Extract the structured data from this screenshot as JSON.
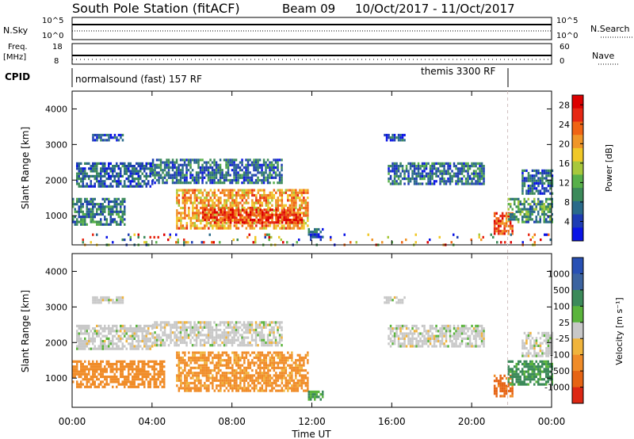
{
  "header": {
    "title": "South Pole Station (fitACF)",
    "beam": "Beam 09",
    "date_range": "10/Oct/2017 - 11/Oct/2017"
  },
  "summary_panels": {
    "nsky": {
      "label": "N.Sky",
      "right_label": "N.Search",
      "left_ticks": [
        "10^5",
        "10^0"
      ],
      "right_ticks": [
        "10^5",
        "10^0"
      ]
    },
    "freq": {
      "label_line1": "Freq.",
      "label_line2": "[MHz]",
      "right_label": "Nave",
      "left_ticks": [
        "18",
        "8"
      ],
      "right_ticks": [
        "60",
        "0"
      ]
    },
    "cpid": {
      "label": "CPID",
      "program1": "normalsound (fast) 157 RF",
      "program2": "themis 3300 RF"
    }
  },
  "chart_data": [
    {
      "type": "heatmap",
      "name": "power",
      "ylabel": "Slant Range [km]",
      "xlabel": "Time UT",
      "x_ticks": [
        "00:00",
        "04:00",
        "08:00",
        "12:00",
        "16:00",
        "20:00",
        "00:00"
      ],
      "xlim_hours": [
        0,
        24
      ],
      "ylim_km": [
        180,
        4500
      ],
      "y_ticks": [
        1000,
        2000,
        3000,
        4000
      ],
      "colorbar": {
        "label": "Power [dB]",
        "ticks": [
          4,
          8,
          12,
          16,
          20,
          24,
          28
        ],
        "range": [
          0,
          30
        ],
        "colors": [
          "#0a14e6",
          "#1e3cb4",
          "#2a6a8a",
          "#3c8a5a",
          "#58b04a",
          "#a8c83c",
          "#f0c828",
          "#f09628",
          "#f06414",
          "#e62814",
          "#dc0000"
        ]
      },
      "regions": [
        {
          "t0": 0.0,
          "t1": 2.6,
          "r0": 750,
          "r1": 1500,
          "level": 8
        },
        {
          "t0": 0.2,
          "t1": 4.0,
          "r0": 1800,
          "r1": 2500,
          "level": 6
        },
        {
          "t0": 1.0,
          "t1": 2.5,
          "r0": 3100,
          "r1": 3300,
          "level": 5
        },
        {
          "t0": 5.2,
          "t1": 11.8,
          "r0": 650,
          "r1": 1750,
          "level": 20
        },
        {
          "t0": 6.5,
          "t1": 11.5,
          "r0": 800,
          "r1": 1200,
          "level": 26
        },
        {
          "t0": 4.0,
          "t1": 10.5,
          "r0": 1900,
          "r1": 2600,
          "level": 7
        },
        {
          "t0": 11.8,
          "t1": 12.5,
          "r0": 400,
          "r1": 650,
          "level": 5
        },
        {
          "t0": 15.8,
          "t1": 20.6,
          "r0": 1900,
          "r1": 2500,
          "level": 7
        },
        {
          "t0": 15.6,
          "t1": 16.6,
          "r0": 3100,
          "r1": 3300,
          "level": 5
        },
        {
          "t0": 21.1,
          "t1": 22.0,
          "r0": 500,
          "r1": 1100,
          "level": 24
        },
        {
          "t0": 21.8,
          "t1": 24.0,
          "r0": 800,
          "r1": 1500,
          "level": 10
        },
        {
          "t0": 22.5,
          "t1": 24.0,
          "r0": 1600,
          "r1": 2300,
          "level": 6
        },
        {
          "t0": 0.0,
          "t1": 24.0,
          "r0": 180,
          "r1": 500,
          "level": 10
        }
      ]
    },
    {
      "type": "heatmap",
      "name": "velocity",
      "ylabel": "Slant Range [km]",
      "xlabel": "Time UT",
      "x_ticks": [
        "00:00",
        "04:00",
        "08:00",
        "12:00",
        "16:00",
        "20:00",
        "00:00"
      ],
      "xlim_hours": [
        0,
        24
      ],
      "ylim_km": [
        180,
        4500
      ],
      "y_ticks": [
        1000,
        2000,
        3000,
        4000
      ],
      "colorbar": {
        "label": "Velocity [m s⁻¹]",
        "ticks": [
          "1000",
          "500",
          "100",
          "25",
          "-25",
          "-100",
          "-500",
          "-1000"
        ],
        "colors": [
          "#2850b4",
          "#3c64a0",
          "#3c8a5a",
          "#5ab43c",
          "#c8c8c8",
          "#f0b43c",
          "#f08c28",
          "#e66414",
          "#dc2814"
        ]
      },
      "regions": [
        {
          "t0": 0.0,
          "t1": 4.6,
          "r0": 750,
          "r1": 1500,
          "level": -300
        },
        {
          "t0": 5.2,
          "t1": 11.8,
          "r0": 650,
          "r1": 1750,
          "level": -200
        },
        {
          "t0": 0.2,
          "t1": 4.0,
          "r0": 1800,
          "r1": 2500,
          "level": 0
        },
        {
          "t0": 4.0,
          "t1": 10.5,
          "r0": 1900,
          "r1": 2600,
          "level": 0
        },
        {
          "t0": 1.0,
          "t1": 2.5,
          "r0": 3100,
          "r1": 3300,
          "level": 0
        },
        {
          "t0": 11.8,
          "t1": 12.5,
          "r0": 400,
          "r1": 650,
          "level": 100
        },
        {
          "t0": 15.8,
          "t1": 20.6,
          "r0": 1900,
          "r1": 2500,
          "level": 0
        },
        {
          "t0": 15.6,
          "t1": 16.6,
          "r0": 3100,
          "r1": 3300,
          "level": 0
        },
        {
          "t0": 21.1,
          "t1": 22.0,
          "r0": 500,
          "r1": 1100,
          "level": -600
        },
        {
          "t0": 21.8,
          "t1": 24.0,
          "r0": 800,
          "r1": 1500,
          "level": 200
        },
        {
          "t0": 22.5,
          "t1": 24.0,
          "r0": 1600,
          "r1": 2300,
          "level": 0
        }
      ]
    }
  ],
  "marker_time_hours": 21.8
}
